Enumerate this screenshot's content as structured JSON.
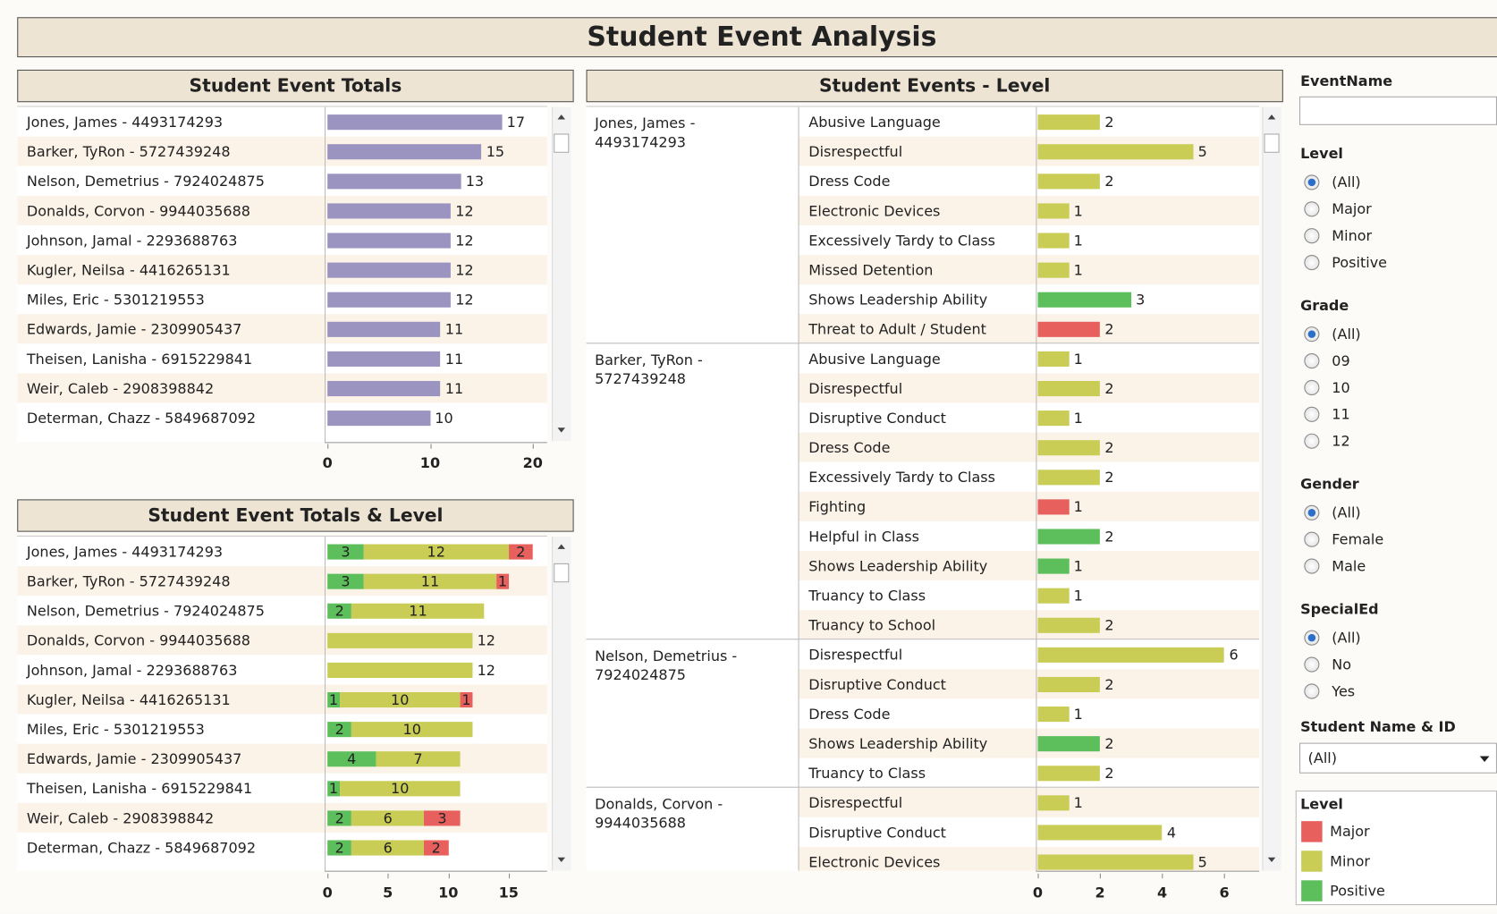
{
  "title": "Student Event Analysis",
  "totals": {
    "title": "Student Event Totals",
    "xlim": [
      0,
      21.3
    ],
    "xticks": [
      0,
      10,
      20
    ],
    "color": "#9b94c0",
    "rows": [
      {
        "name": "Jones, James - 4493174293",
        "value": 17
      },
      {
        "name": "Barker, TyRon - 5727439248",
        "value": 15
      },
      {
        "name": "Nelson, Demetrius - 7924024875",
        "value": 13
      },
      {
        "name": "Donalds, Corvon - 9944035688",
        "value": 12
      },
      {
        "name": "Johnson, Jamal - 2293688763",
        "value": 12
      },
      {
        "name": "Kugler, Neilsa - 4416265131",
        "value": 12
      },
      {
        "name": "Miles, Eric - 5301219553",
        "value": 12
      },
      {
        "name": "Edwards, Jamie - 2309905437",
        "value": 11
      },
      {
        "name": "Theisen, Lanisha - 6915229841",
        "value": 11
      },
      {
        "name": "Weir, Caleb - 2908398842",
        "value": 11
      },
      {
        "name": "Determan, Chazz - 5849687092",
        "value": 10
      }
    ]
  },
  "totals_level": {
    "title": "Student Event Totals & Level",
    "xlim": [
      0,
      18.1
    ],
    "xticks": [
      0,
      5,
      10,
      15
    ],
    "rows": [
      {
        "name": "Jones, James - 4493174293",
        "values": {
          "Positive": 3,
          "Minor": 12,
          "Major": 2
        }
      },
      {
        "name": "Barker, TyRon - 5727439248",
        "values": {
          "Positive": 3,
          "Minor": 11,
          "Major": 1
        }
      },
      {
        "name": "Nelson, Demetrius - 7924024875",
        "values": {
          "Positive": 2,
          "Minor": 11,
          "Major": null
        }
      },
      {
        "name": "Donalds, Corvon - 9944035688",
        "values": {
          "Positive": null,
          "Minor": 12,
          "Major": null
        }
      },
      {
        "name": "Johnson, Jamal - 2293688763",
        "values": {
          "Positive": null,
          "Minor": 12,
          "Major": null
        }
      },
      {
        "name": "Kugler, Neilsa - 4416265131",
        "values": {
          "Positive": 1,
          "Minor": 10,
          "Major": 1
        }
      },
      {
        "name": "Miles, Eric - 5301219553",
        "values": {
          "Positive": 2,
          "Minor": 10,
          "Major": null
        }
      },
      {
        "name": "Edwards, Jamie - 2309905437",
        "values": {
          "Positive": 4,
          "Minor": 7,
          "Major": null
        }
      },
      {
        "name": "Theisen, Lanisha - 6915229841",
        "values": {
          "Positive": 1,
          "Minor": 10,
          "Major": null
        }
      },
      {
        "name": "Weir, Caleb - 2908398842",
        "values": {
          "Positive": 2,
          "Minor": 6,
          "Major": 3
        }
      },
      {
        "name": "Determan, Chazz - 5849687092",
        "values": {
          "Positive": 2,
          "Minor": 6,
          "Major": 2
        }
      }
    ]
  },
  "events_level": {
    "title": "Student Events - Level",
    "xlim": [
      0,
      7
    ],
    "xticks": [
      0,
      2,
      4,
      6
    ],
    "groups": [
      {
        "name": "Jones, James - 4493174293",
        "rows": [
          {
            "event": "Abusive Language",
            "level": "Minor",
            "value": 2
          },
          {
            "event": "Disrespectful",
            "level": "Minor",
            "value": 5
          },
          {
            "event": "Dress Code",
            "level": "Minor",
            "value": 2
          },
          {
            "event": "Electronic Devices",
            "level": "Minor",
            "value": 1
          },
          {
            "event": "Excessively Tardy to Class",
            "level": "Minor",
            "value": 1
          },
          {
            "event": "Missed Detention",
            "level": "Minor",
            "value": 1
          },
          {
            "event": "Shows Leadership Ability",
            "level": "Positive",
            "value": 3
          },
          {
            "event": "Threat to Adult / Student",
            "level": "Major",
            "value": 2
          }
        ]
      },
      {
        "name": "Barker, TyRon - 5727439248",
        "rows": [
          {
            "event": "Abusive Language",
            "level": "Minor",
            "value": 1
          },
          {
            "event": "Disrespectful",
            "level": "Minor",
            "value": 2
          },
          {
            "event": "Disruptive Conduct",
            "level": "Minor",
            "value": 1
          },
          {
            "event": "Dress Code",
            "level": "Minor",
            "value": 2
          },
          {
            "event": "Excessively Tardy to Class",
            "level": "Minor",
            "value": 2
          },
          {
            "event": "Fighting",
            "level": "Major",
            "value": 1
          },
          {
            "event": "Helpful in Class",
            "level": "Positive",
            "value": 2
          },
          {
            "event": "Shows Leadership Ability",
            "level": "Positive",
            "value": 1
          },
          {
            "event": "Truancy to Class",
            "level": "Minor",
            "value": 1
          },
          {
            "event": "Truancy to School",
            "level": "Minor",
            "value": 2
          }
        ]
      },
      {
        "name": "Nelson, Demetrius - 7924024875",
        "rows": [
          {
            "event": "Disrespectful",
            "level": "Minor",
            "value": 6
          },
          {
            "event": "Disruptive Conduct",
            "level": "Minor",
            "value": 2
          },
          {
            "event": "Dress Code",
            "level": "Minor",
            "value": 1
          },
          {
            "event": "Shows Leadership Ability",
            "level": "Positive",
            "value": 2
          },
          {
            "event": "Truancy to Class",
            "level": "Minor",
            "value": 2
          }
        ]
      },
      {
        "name": "Donalds, Corvon - 9944035688",
        "rows": [
          {
            "event": "Disrespectful",
            "level": "Minor",
            "value": 1
          },
          {
            "event": "Disruptive Conduct",
            "level": "Minor",
            "value": 4
          },
          {
            "event": "Electronic Devices",
            "level": "Minor",
            "value": 5
          }
        ]
      }
    ]
  },
  "filters": {
    "event_name": {
      "label": "EventName",
      "value": ""
    },
    "radios": [
      {
        "label": "Level",
        "options": [
          "(All)",
          "Major",
          "Minor",
          "Positive"
        ],
        "selected": 0
      },
      {
        "label": "Grade",
        "options": [
          "(All)",
          "09",
          "10",
          "11",
          "12"
        ],
        "selected": 0
      },
      {
        "label": "Gender",
        "options": [
          "(All)",
          "Female",
          "Male"
        ],
        "selected": 0
      },
      {
        "label": "SpecialEd",
        "options": [
          "(All)",
          "No",
          "Yes"
        ],
        "selected": 0
      }
    ],
    "student": {
      "label": "Student Name & ID",
      "value": "(All)"
    }
  },
  "legend": {
    "title": "Level",
    "items": [
      {
        "label": "Major",
        "color": "#e8605e"
      },
      {
        "label": "Minor",
        "color": "#c9cd55"
      },
      {
        "label": "Positive",
        "color": "#5cbf5c"
      }
    ]
  }
}
